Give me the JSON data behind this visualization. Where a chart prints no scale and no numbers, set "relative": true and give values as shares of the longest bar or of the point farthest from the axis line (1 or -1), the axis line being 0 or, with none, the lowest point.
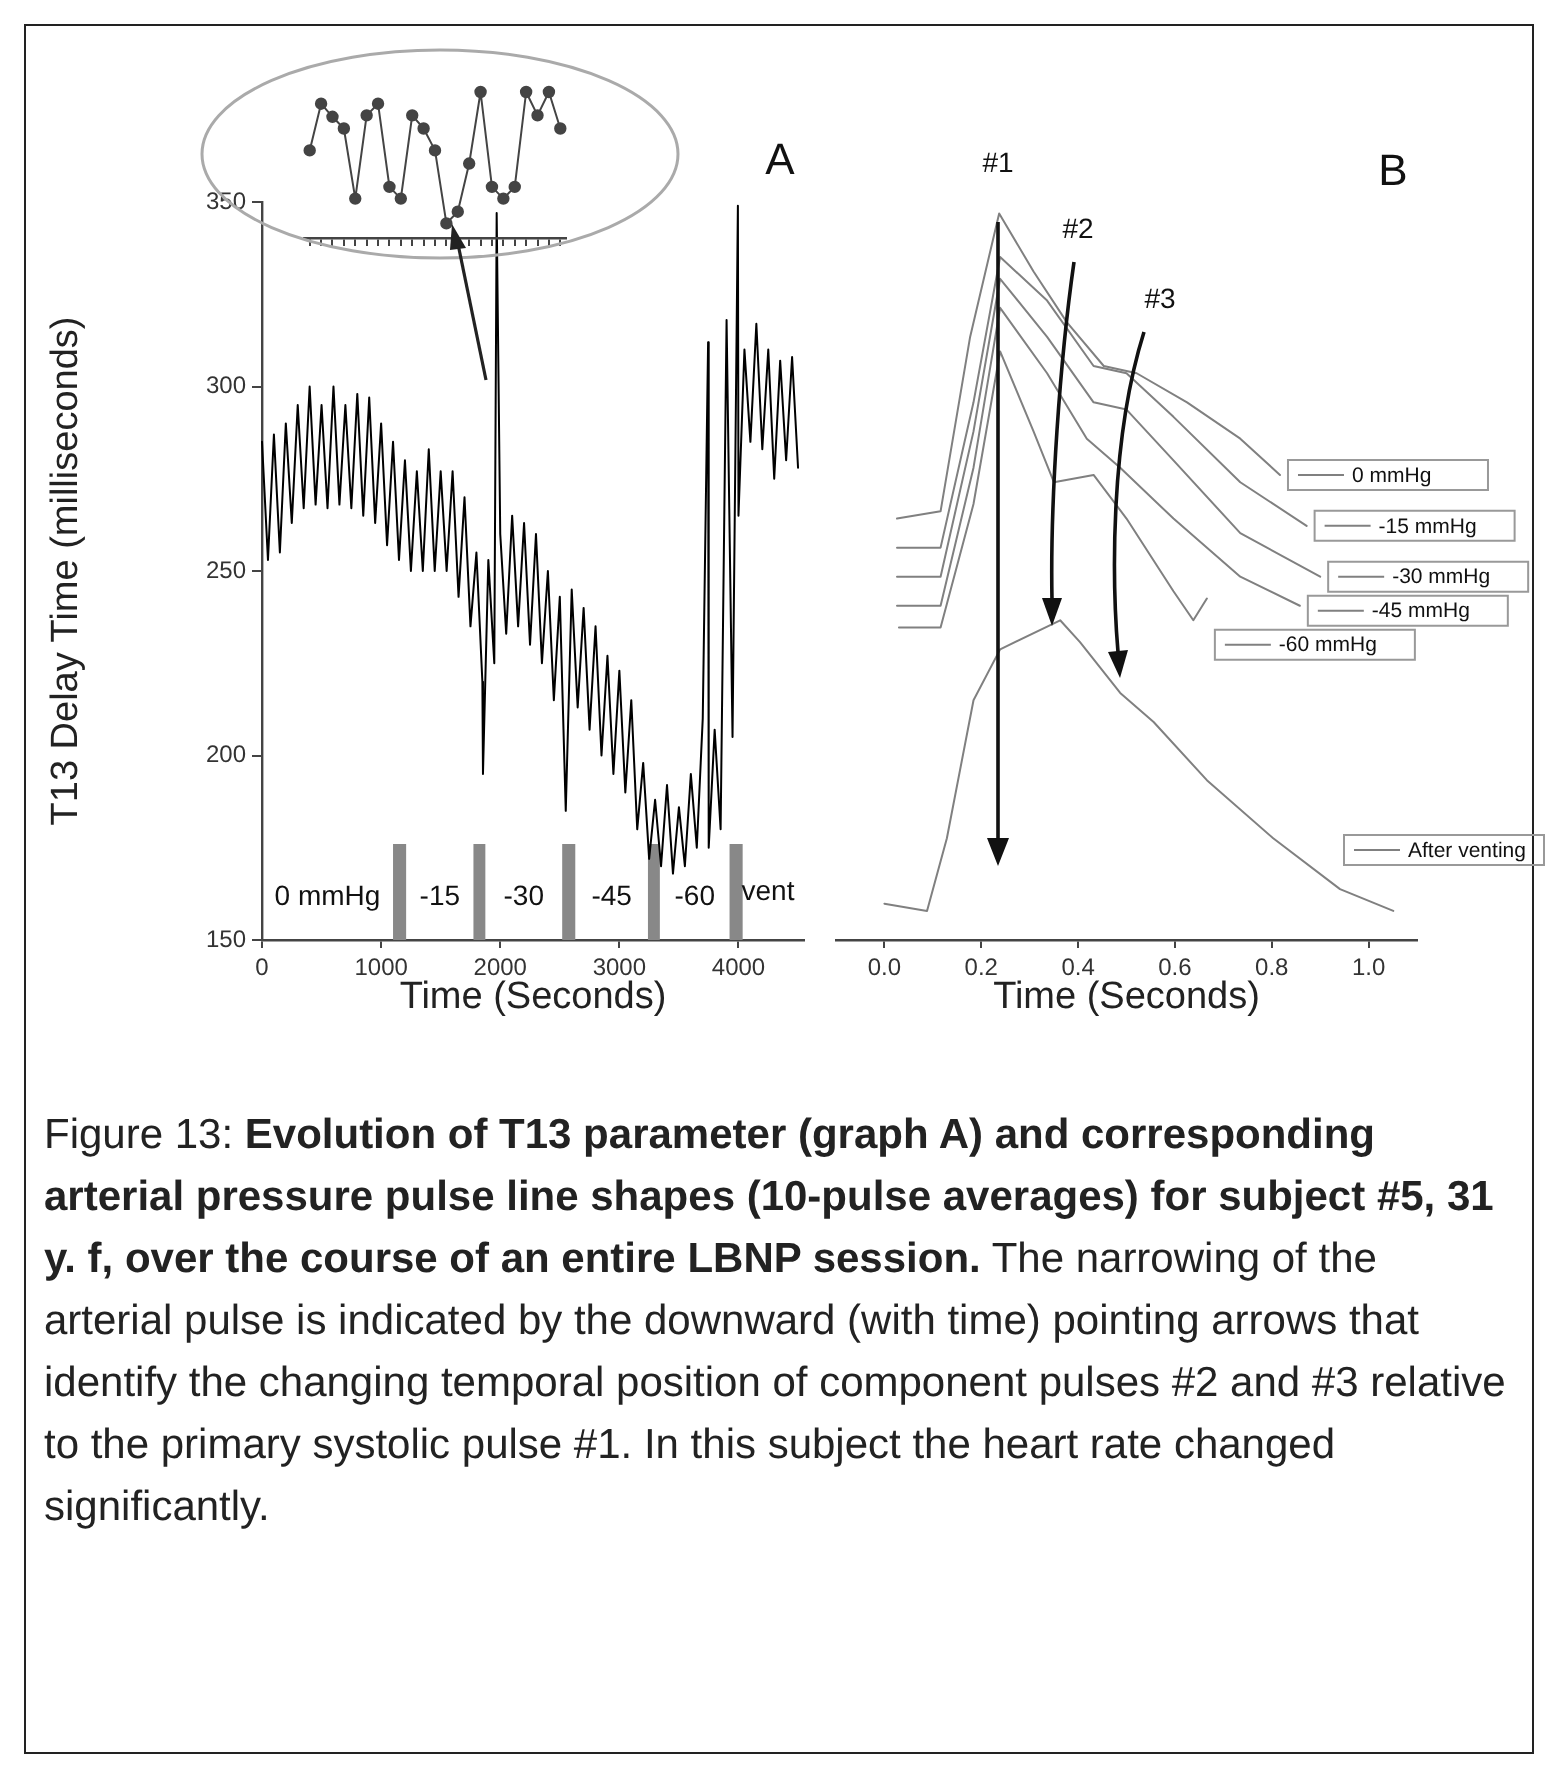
{
  "chart_data": [
    {
      "type": "line",
      "title": "A",
      "xlabel": "Time (Seconds)",
      "ylabel": "T13 Delay Time (milliseconds)",
      "color": "#000000",
      "x": [
        0,
        50,
        100,
        150,
        200,
        250,
        300,
        350,
        400,
        450,
        500,
        550,
        600,
        650,
        700,
        750,
        800,
        850,
        900,
        950,
        1000,
        1050,
        1100,
        1150,
        1200,
        1250,
        1300,
        1350,
        1400,
        1450,
        1500,
        1550,
        1600,
        1650,
        1700,
        1750,
        1800,
        1850,
        1855,
        1900,
        1950,
        1970,
        2000,
        2050,
        2100,
        2150,
        2200,
        2250,
        2300,
        2350,
        2400,
        2450,
        2500,
        2550,
        2600,
        2650,
        2700,
        2750,
        2800,
        2850,
        2900,
        2950,
        3000,
        3050,
        3100,
        3150,
        3200,
        3250,
        3300,
        3350,
        3400,
        3450,
        3500,
        3550,
        3600,
        3650,
        3700,
        3745,
        3750,
        3800,
        3850,
        3900,
        3950,
        3995,
        4000,
        4050,
        4100,
        4150,
        4200,
        4250,
        4300,
        4350,
        4400,
        4450,
        4500
      ],
      "values": [
        285,
        253,
        287,
        255,
        290,
        263,
        295,
        267,
        300,
        268,
        295,
        267,
        300,
        268,
        295,
        267,
        298,
        265,
        297,
        263,
        290,
        257,
        285,
        253,
        280,
        250,
        277,
        250,
        283,
        250,
        277,
        250,
        277,
        243,
        270,
        235,
        255,
        220,
        195,
        253,
        225,
        347,
        260,
        233,
        265,
        235,
        263,
        230,
        260,
        225,
        250,
        215,
        243,
        185,
        245,
        213,
        240,
        207,
        235,
        200,
        227,
        195,
        223,
        190,
        215,
        180,
        198,
        172,
        188,
        170,
        192,
        168,
        186,
        170,
        195,
        175,
        210,
        312,
        175,
        207,
        180,
        318,
        205,
        349,
        265,
        310,
        285,
        317,
        283,
        310,
        275,
        307,
        280,
        308,
        278
      ],
      "xlim": [
        0,
        4550
      ],
      "xticks": [
        0,
        1000,
        2000,
        3000,
        4000
      ],
      "ylim": [
        150,
        350
      ],
      "yticks": [
        150,
        200,
        250,
        300,
        350
      ],
      "bands": [
        {
          "axis": "x",
          "from": 1100,
          "to": 1210,
          "color": "#888888",
          "label": "0 mmHg"
        },
        {
          "axis": "x",
          "from": 1775,
          "to": 1875,
          "color": "#888888",
          "label": "-15"
        },
        {
          "axis": "x",
          "from": 2520,
          "to": 2630,
          "color": "#888888",
          "label": "-30"
        },
        {
          "axis": "x",
          "from": 3240,
          "to": 3340,
          "color": "#888888",
          "label": "-45"
        },
        {
          "axis": "x",
          "from": 3925,
          "to": 4035,
          "color": "#888888",
          "label": "-60"
        }
      ],
      "annotations": [
        "vent"
      ]
    },
    {
      "type": "line",
      "relative": true,
      "marker": "circle",
      "color": "#444444",
      "categories": [
        null,
        null,
        null,
        null,
        null,
        null,
        null,
        null,
        null,
        null,
        null,
        null,
        null,
        null,
        null,
        null,
        null,
        null,
        null,
        null,
        null,
        null,
        null
      ],
      "values": [
        0.6,
        0.92,
        0.83,
        0.75,
        0.27,
        0.84,
        0.92,
        0.35,
        0.27,
        0.84,
        0.75,
        0.6,
        0.1,
        0.18,
        0.51,
        1,
        0.35,
        0.27,
        0.35,
        1,
        0.84,
        1,
        0.75
      ]
    },
    {
      "type": "line",
      "title": "B",
      "xlabel": "Time (Seconds)",
      "relative": true,
      "legend": "right",
      "xlim": [
        -0.1,
        1.1
      ],
      "xticks": [
        {
          "value": 0,
          "label": "0.0"
        },
        {
          "value": 0.2,
          "label": "0.2"
        },
        {
          "value": 0.4,
          "label": "0.4"
        },
        {
          "value": 0.6,
          "label": "0.6"
        },
        {
          "value": 0.8,
          "label": "0.8"
        },
        {
          "value": 1,
          "label": "1.0"
        }
      ],
      "series": [
        {
          "name": "0 mmHg",
          "color": "#808080",
          "x": [
            0.026,
            0.116,
            0.177,
            0.237,
            0.308,
            0.377,
            0.453,
            0.521,
            0.625,
            0.735,
            0.817
          ],
          "values": [
            0.58,
            0.59,
            0.83,
            1,
            0.92,
            0.85,
            0.79,
            0.78,
            0.74,
            0.69,
            0.64
          ]
        },
        {
          "name": "-15 mmHg",
          "color": "#808080",
          "x": [
            0.026,
            0.116,
            0.184,
            0.239,
            0.336,
            0.432,
            0.5,
            0.597,
            0.735,
            0.872
          ],
          "values": [
            0.54,
            0.54,
            0.74,
            0.94,
            0.88,
            0.79,
            0.78,
            0.72,
            0.63,
            0.57
          ]
        },
        {
          "name": "-30 mmHg",
          "color": "#808080",
          "x": [
            0.026,
            0.116,
            0.184,
            0.239,
            0.336,
            0.432,
            0.5,
            0.597,
            0.735,
            0.9
          ],
          "values": [
            0.5,
            0.5,
            0.7,
            0.91,
            0.83,
            0.74,
            0.73,
            0.66,
            0.56,
            0.5
          ]
        },
        {
          "name": "-45 mmHg",
          "color": "#808080",
          "x": [
            0.026,
            0.116,
            0.184,
            0.239,
            0.336,
            0.418,
            0.487,
            0.597,
            0.735,
            0.858
          ],
          "values": [
            0.46,
            0.46,
            0.65,
            0.87,
            0.78,
            0.69,
            0.65,
            0.58,
            0.5,
            0.46
          ]
        },
        {
          "name": "-60 mmHg",
          "color": "#808080",
          "x": [
            0.03,
            0.116,
            0.184,
            0.239,
            0.308,
            0.35,
            0.432,
            0.5,
            0.597,
            0.638,
            0.666
          ],
          "values": [
            0.43,
            0.43,
            0.6,
            0.81,
            0.7,
            0.63,
            0.64,
            0.58,
            0.48,
            0.44,
            0.47
          ]
        },
        {
          "name": "After venting",
          "color": "#808080",
          "x": [
            0,
            0.088,
            0.129,
            0.184,
            0.239,
            0.363,
            0.404,
            0.487,
            0.556,
            0.666,
            0.803,
            0.941,
            1.051
          ],
          "values": [
            0.05,
            0.04,
            0.14,
            0.33,
            0.4,
            0.44,
            0.41,
            0.34,
            0.3,
            0.22,
            0.14,
            0.07,
            0.04
          ]
        }
      ],
      "annotations": [
        "#1",
        "#2",
        "#3",
        "Figure 13: ",
        "Evolution of T13 parameter (graph A) and corresponding arterial pressure pulse line shapes (10-pulse averages) for subject #5, 31 y. f, over the course of an entire LBNP session.",
        " The narrowing of the arterial pulse is indicated by the downward (with time) pointing arrows that identify the changing temporal position of component pulses #2 and #3 relative to the primary systolic pulse #1. In this subject the heart rate changed significantly."
      ]
    }
  ]
}
